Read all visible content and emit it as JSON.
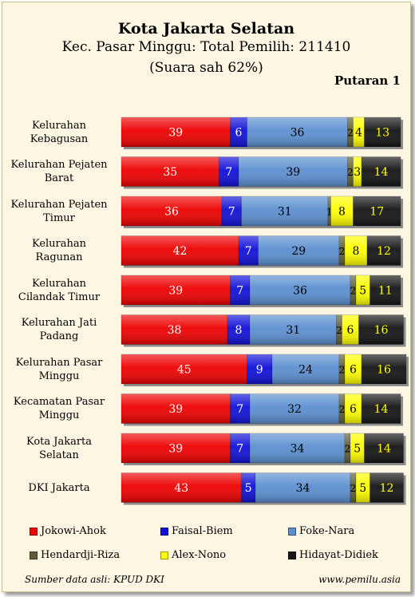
{
  "chart_data": {
    "type": "bar",
    "orientation": "horizontal",
    "stacked": true,
    "title": "Kota Jakarta Selatan",
    "subtitle": "Kec. Pasar Minggu: Total Pemilih: 211410",
    "subtitle2": "(Suara sah 62%)",
    "round_label": "Putaran 1",
    "categories": [
      [
        "Kelurahan",
        "Kebagusan"
      ],
      [
        "Kelurahan Pejaten",
        "Barat"
      ],
      [
        "Kelurahan Pejaten",
        "Timur"
      ],
      [
        "Kelurahan",
        "Ragunan"
      ],
      [
        "Kelurahan",
        "Cilandak Timur"
      ],
      [
        "Kelurahan Jati",
        "Padang"
      ],
      [
        "Kelurahan Pasar",
        "Minggu"
      ],
      [
        "Kecamatan Pasar",
        "Minggu"
      ],
      [
        "Kota Jakarta",
        "Selatan"
      ],
      [
        "DKI Jakarta"
      ]
    ],
    "series": [
      {
        "name": "Jokowi-Ahok",
        "color": "#ee0000",
        "label_color": "#ffffff",
        "values": [
          39,
          35,
          36,
          42,
          39,
          38,
          45,
          39,
          39,
          43
        ]
      },
      {
        "name": "Faisal-Biem",
        "color": "#1010d8",
        "label_color": "#ffffff",
        "values": [
          6,
          7,
          7,
          7,
          7,
          8,
          9,
          7,
          7,
          5
        ]
      },
      {
        "name": "Foke-Nara",
        "color": "#5b8fd0",
        "label_color": "#000000",
        "values": [
          36,
          39,
          31,
          29,
          36,
          31,
          24,
          32,
          34,
          34
        ]
      },
      {
        "name": "Hendardji-Riza",
        "color": "#5e5e3a",
        "label_color": "#000000",
        "values": [
          2,
          2,
          1,
          2,
          2,
          2,
          2,
          2,
          2,
          2
        ]
      },
      {
        "name": "Alex-Nono",
        "color": "#ffff00",
        "label_color": "#000000",
        "values": [
          4,
          3,
          8,
          8,
          5,
          6,
          6,
          6,
          5,
          5
        ]
      },
      {
        "name": "Hidayat-Didiek",
        "color": "#141414",
        "label_color": "#ffff00",
        "values": [
          13,
          14,
          17,
          12,
          11,
          16,
          16,
          14,
          14,
          12
        ]
      }
    ],
    "xlim": [
      0,
      100
    ],
    "grid": false,
    "legend_position": "bottom"
  },
  "footer": {
    "source": "Sumber data asli: KPUD DKI",
    "site": "www.pemilu.asia"
  }
}
